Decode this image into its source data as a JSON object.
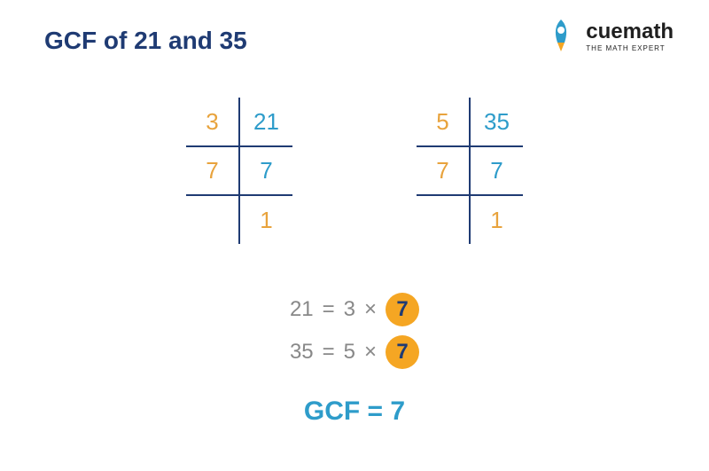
{
  "title": "GCF of 21 and 35",
  "colors": {
    "navy": "#1f3b73",
    "orange": "#e8a33d",
    "teal": "#2e9cca",
    "gray": "#888888",
    "circle_bg": "#f5a623",
    "circle_text": "#1f3b73",
    "border": "#1f3b73"
  },
  "logo": {
    "brand": "cuemath",
    "tagline": "THE MATH EXPERT",
    "brand_color": "#1f1f1f",
    "rocket_body": "#2e9cca",
    "rocket_flame": "#f5a623"
  },
  "tables": [
    {
      "rows": [
        {
          "divisor": "3",
          "divisor_color": "#e8a33d",
          "value": "21",
          "value_color": "#2e9cca",
          "line": true
        },
        {
          "divisor": "7",
          "divisor_color": "#e8a33d",
          "value": "7",
          "value_color": "#2e9cca",
          "line": true
        },
        {
          "divisor": "",
          "divisor_color": "#e8a33d",
          "value": "1",
          "value_color": "#e8a33d",
          "line": false
        }
      ]
    },
    {
      "rows": [
        {
          "divisor": "5",
          "divisor_color": "#e8a33d",
          "value": "35",
          "value_color": "#2e9cca",
          "line": true
        },
        {
          "divisor": "7",
          "divisor_color": "#e8a33d",
          "value": "7",
          "value_color": "#2e9cca",
          "line": true
        },
        {
          "divisor": "",
          "divisor_color": "#e8a33d",
          "value": "1",
          "value_color": "#e8a33d",
          "line": false
        }
      ]
    }
  ],
  "equations": [
    {
      "lhs": "21",
      "eq": "=",
      "factor": "3",
      "mult": "×",
      "common": "7"
    },
    {
      "lhs": "35",
      "eq": "=",
      "factor": "5",
      "mult": "×",
      "common": "7"
    }
  ],
  "result": {
    "label": "GCF",
    "eq": "=",
    "value": "7"
  }
}
